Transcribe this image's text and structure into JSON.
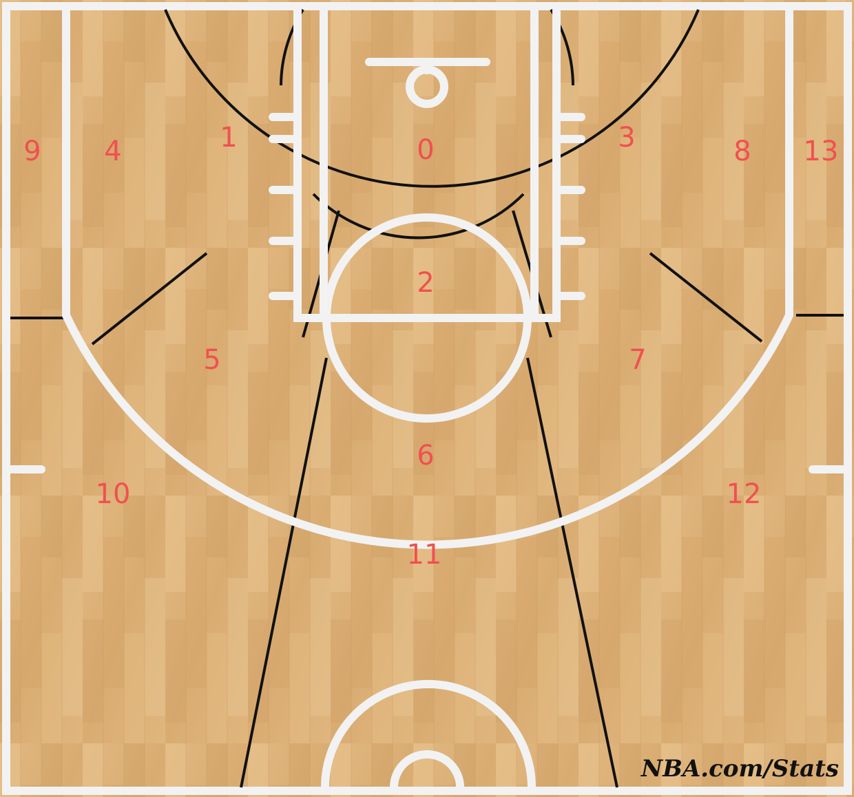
{
  "zones": [
    {
      "id": "0",
      "label": "0"
    },
    {
      "id": "1",
      "label": "1"
    },
    {
      "id": "2",
      "label": "2"
    },
    {
      "id": "3",
      "label": "3"
    },
    {
      "id": "4",
      "label": "4"
    },
    {
      "id": "5",
      "label": "5"
    },
    {
      "id": "6",
      "label": "6"
    },
    {
      "id": "7",
      "label": "7"
    },
    {
      "id": "8",
      "label": "8"
    },
    {
      "id": "9",
      "label": "9"
    },
    {
      "id": "10",
      "label": "10"
    },
    {
      "id": "11",
      "label": "11"
    },
    {
      "id": "12",
      "label": "12"
    },
    {
      "id": "13",
      "label": "13"
    }
  ],
  "watermark": "NBA.com/Stats",
  "colors": {
    "wood": "#ddb27a",
    "court_line": "#f2f2f2",
    "zone_line": "#111111",
    "zone_label": "#f05050"
  }
}
